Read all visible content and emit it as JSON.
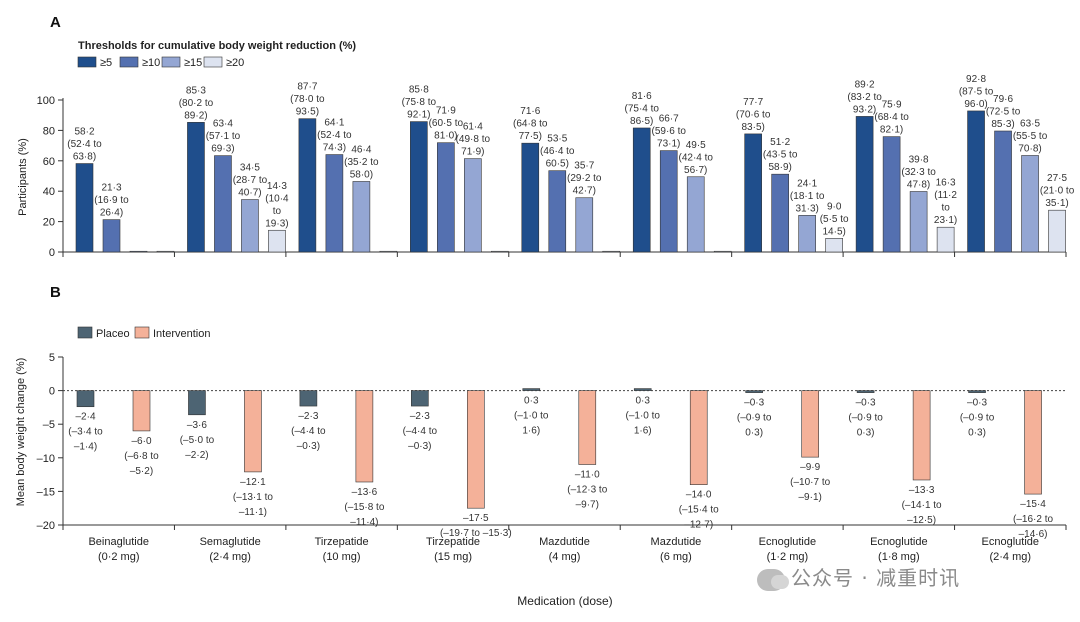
{
  "panel_labels": {
    "a": "A",
    "b": "B"
  },
  "watermark": "公众号 · 减重时讯",
  "colors": {
    "ge5": "#1f4e8c",
    "ge10": "#5470b0",
    "ge15": "#94a6d3",
    "ge20": "#dde3f0",
    "placebo": "#4d6473",
    "intervention": "#f4b199",
    "bar_edge": "#333333"
  },
  "chart_data": [
    {
      "type": "bar",
      "panel": "A",
      "title": "Thresholds for cumulative body weight reduction (%)",
      "ylabel": "Participants (%)",
      "xlabel": "",
      "ylim": [
        0,
        100
      ],
      "yticks": [
        0,
        20,
        40,
        60,
        80,
        100
      ],
      "legend": [
        "≥5",
        "≥10",
        "≥15",
        "≥20"
      ],
      "categories": [
        "Beinaglutide (0·2 mg)",
        "Semaglutide (2·4 mg)",
        "Tirzepatide (10 mg)",
        "Tirzepatide (15 mg)",
        "Mazdutide (4 mg)",
        "Mazdutide (6 mg)",
        "Ecnoglutide (1·2 mg)",
        "Ecnoglutide (1·8 mg)",
        "Ecnoglutide (2·4 mg)"
      ],
      "series": [
        {
          "name": "≥5",
          "values": [
            58.2,
            85.3,
            87.7,
            85.8,
            71.6,
            81.6,
            77.7,
            89.2,
            92.8
          ],
          "labels": [
            [
              "58·2",
              "(52·4 to",
              "63·8)"
            ],
            [
              "85·3",
              "(80·2 to",
              "89·2)"
            ],
            [
              "87·7",
              "(78·0 to",
              "93·5)"
            ],
            [
              "85·8",
              "(75·8 to",
              "92·1)"
            ],
            [
              "71·6",
              "(64·8 to",
              "77·5)"
            ],
            [
              "81·6",
              "(75·4 to",
              "86·5)"
            ],
            [
              "77·7",
              "(70·6 to",
              "83·5)"
            ],
            [
              "89·2",
              "(83·2 to",
              "93·2)"
            ],
            [
              "92·8",
              "(87·5 to",
              "96·0)"
            ]
          ]
        },
        {
          "name": "≥10",
          "values": [
            21.3,
            63.4,
            64.1,
            71.9,
            53.5,
            66.7,
            51.2,
            75.9,
            79.6
          ],
          "labels": [
            [
              "21·3",
              "(16·9 to",
              "26·4)"
            ],
            [
              "63·4",
              "(57·1 to",
              "69·3)"
            ],
            [
              "64·1",
              "(52·4 to",
              "74·3)"
            ],
            [
              "71·9",
              "(60·5 to",
              "81·0)"
            ],
            [
              "53·5",
              "(46·4 to",
              "60·5)"
            ],
            [
              "66·7",
              "(59·6 to",
              "73·1)"
            ],
            [
              "51·2",
              "(43·5 to",
              "58·9)"
            ],
            [
              "75·9",
              "(68·4 to",
              "82·1)"
            ],
            [
              "79·6",
              "(72·5 to",
              "85·3)"
            ]
          ]
        },
        {
          "name": "≥15",
          "values": [
            0.5,
            34.5,
            46.4,
            61.4,
            35.7,
            49.5,
            24.1,
            39.8,
            63.5
          ],
          "labels": [
            [],
            [
              "34·5",
              "(28·7 to",
              "40·7)"
            ],
            [
              "46·4",
              "(35·2 to",
              "58·0)"
            ],
            [
              "61·4",
              "(49·8 to",
              "71·9)"
            ],
            [
              "35·7",
              "(29·2 to",
              "42·7)"
            ],
            [
              "49·5",
              "(42·4 to",
              "56·7)"
            ],
            [
              "24·1",
              "(18·1 to",
              "31·3)"
            ],
            [
              "39·8",
              "(32·3 to",
              "47·8)"
            ],
            [
              "63·5",
              "(55·5 to",
              "70·8)"
            ]
          ]
        },
        {
          "name": "≥20",
          "values": [
            0.5,
            14.3,
            0.5,
            0.5,
            0.5,
            0.5,
            9.0,
            16.3,
            27.5
          ],
          "labels": [
            [],
            [
              "14·3",
              "(10·4",
              "to",
              "19·3)"
            ],
            [],
            [],
            [],
            [],
            [
              "9·0",
              "(5·5 to",
              "14·5)"
            ],
            [
              "16·3",
              "(11·2",
              "to",
              "23·1)"
            ],
            [
              "27·5",
              "(21·0 to",
              "35·1)"
            ]
          ]
        }
      ]
    },
    {
      "type": "bar",
      "panel": "B",
      "title": "",
      "ylabel": "Mean body weight change (%)",
      "xlabel": "Medication (dose)",
      "ylim": [
        -20,
        5
      ],
      "yticks": [
        5,
        0,
        -5,
        -10,
        -15,
        -20
      ],
      "legend": [
        "Placeo",
        "Intervention"
      ],
      "categories": [
        [
          "Beinaglutide",
          "(0·2 mg)"
        ],
        [
          "Semaglutide",
          "(2·4 mg)"
        ],
        [
          "Tirzepatide",
          "(10 mg)"
        ],
        [
          "Tirzepatide",
          "(15 mg)"
        ],
        [
          "Mazdutide",
          "(4 mg)"
        ],
        [
          "Mazdutide",
          "(6 mg)"
        ],
        [
          "Ecnoglutide",
          "(1·2 mg)"
        ],
        [
          "Ecnoglutide",
          "(1·8 mg)"
        ],
        [
          "Ecnoglutide",
          "(2·4 mg)"
        ]
      ],
      "series": [
        {
          "name": "Placeo",
          "values": [
            -2.4,
            -3.6,
            -2.3,
            -2.3,
            0.3,
            0.3,
            -0.3,
            -0.3,
            -0.3
          ],
          "labels": [
            [
              "–2·4",
              "(–3·4 to",
              "–1·4)"
            ],
            [
              "–3·6",
              "(–5·0 to",
              "–2·2)"
            ],
            [
              "–2·3",
              "(–4·4 to",
              "–0·3)"
            ],
            [
              "–2·3",
              "(–4·4 to",
              "–0·3)"
            ],
            [
              "0·3",
              "(–1·0 to",
              "1·6)"
            ],
            [
              "0·3",
              "(–1·0 to",
              "1·6)"
            ],
            [
              "–0·3",
              "(–0·9 to",
              "0·3)"
            ],
            [
              "–0·3",
              "(–0·9 to",
              "0·3)"
            ],
            [
              "–0·3",
              "(–0·9 to",
              "0·3)"
            ]
          ]
        },
        {
          "name": "Intervention",
          "values": [
            -6.0,
            -12.1,
            -13.6,
            -17.5,
            -11.0,
            -14.0,
            -9.9,
            -13.3,
            -15.4
          ],
          "labels": [
            [
              "–6·0",
              "(–6·8 to",
              "–5·2)"
            ],
            [
              "–12·1",
              "(–13·1 to",
              "–11·1)"
            ],
            [
              "–13·6",
              "(–15·8 to",
              "–11·4)"
            ],
            [
              "–17·5",
              "(–19·7 to –15·3)"
            ],
            [
              "–11·0",
              "(–12·3 to",
              "–9·7)"
            ],
            [
              "–14·0",
              "(–15·4 to",
              "–12·7)"
            ],
            [
              "–9·9",
              "(–10·7 to",
              "–9·1)"
            ],
            [
              "–13·3",
              "(–14·1 to",
              "–12·5)"
            ],
            [
              "–15·4",
              "(–16·2 to",
              "–14·6)"
            ]
          ]
        }
      ]
    }
  ]
}
